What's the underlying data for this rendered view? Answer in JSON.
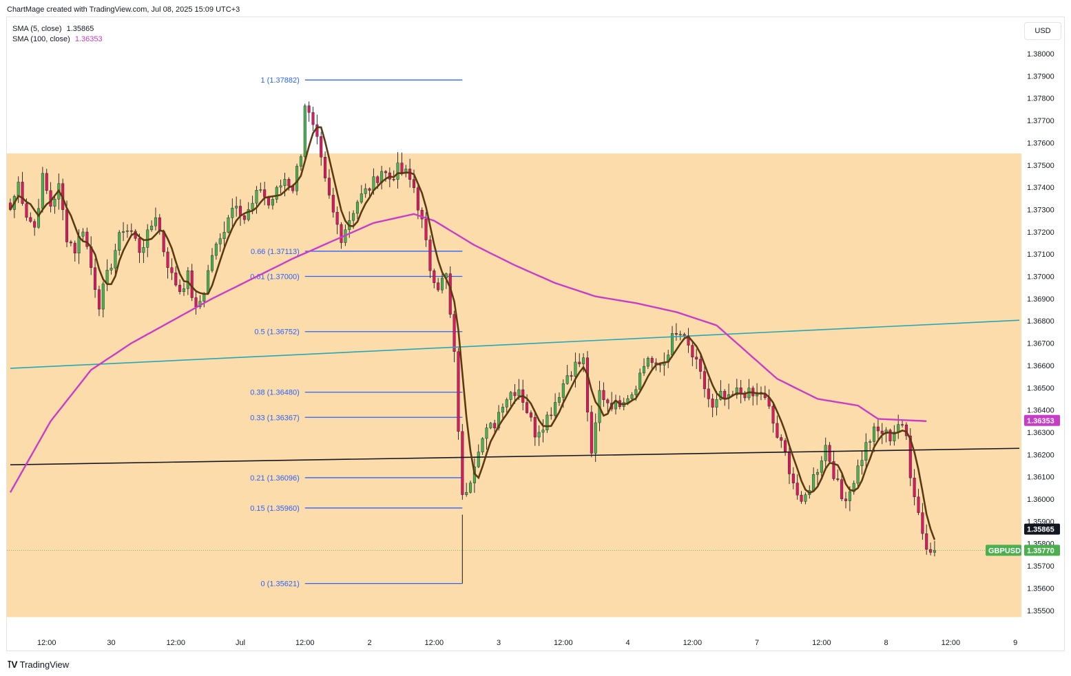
{
  "header": {
    "credit": "ChartMage created with TradingView.com, Jul 08, 2025 15:09 UTC+3"
  },
  "legend": [
    {
      "label": "SMA (5, close)",
      "value": "1.35865",
      "color": "#131722"
    },
    {
      "label": "SMA (100, close)",
      "value": "1.36353",
      "color": "#c83cc8"
    }
  ],
  "toolbar": {
    "currency": "USD"
  },
  "footer": {
    "brand": "TradingView"
  },
  "colors": {
    "zone": "#fcdcaa",
    "up": "#4caf50",
    "down": "#d81b60",
    "sma5": "#5b3a12",
    "sma100": "#c83cc8",
    "fib": "#2962ff",
    "trend_cyan": "#22a8b4",
    "trend_black": "#131722",
    "symbol_tag": "#4caf50"
  },
  "chart_data": {
    "type": "candlestick",
    "symbol": "GBPUSD",
    "last_price": "1.35770",
    "sma5_label": "1.35865",
    "sma100_label": "1.36353",
    "ylim": [
      1.3545,
      1.3812
    ],
    "y_ticks": [
      "1.38000",
      "1.37900",
      "1.37800",
      "1.37700",
      "1.37600",
      "1.37500",
      "1.37400",
      "1.37300",
      "1.37200",
      "1.37100",
      "1.37000",
      "1.36900",
      "1.36800",
      "1.36700",
      "1.36600",
      "1.36500",
      "1.36400",
      "1.36300",
      "1.36200",
      "1.36100",
      "1.36000",
      "1.35900",
      "1.35800",
      "1.35700",
      "1.35600",
      "1.35500"
    ],
    "x_ticks": [
      "12:00",
      "30",
      "12:00",
      "Jul",
      "12:00",
      "2",
      "12:00",
      "3",
      "12:00",
      "4",
      "12:00",
      "7",
      "12:00",
      "8",
      "12:00",
      "9"
    ],
    "x_range_bars": [
      0,
      243
    ],
    "x_tick_bars": [
      9,
      25,
      41,
      57,
      73,
      89,
      105,
      121,
      137,
      153,
      169,
      185,
      201,
      217,
      233,
      249
    ],
    "supply_zone": {
      "top": 1.37552,
      "bottom": 1.3547,
      "from_bar": 0
    },
    "fibonacci": {
      "from_bar": 73,
      "to_bar": 112,
      "levels": [
        {
          "label": "1 (1.37882)",
          "price": 1.37882
        },
        {
          "label": "0.66 (1.37113)",
          "price": 1.37113
        },
        {
          "label": "0.61 (1.37000)",
          "price": 1.37
        },
        {
          "label": "0.5 (1.36752)",
          "price": 1.36752
        },
        {
          "label": "0.38 (1.36480)",
          "price": 1.3648
        },
        {
          "label": "0.33 (1.36367)",
          "price": 1.36367
        },
        {
          "label": "0.21 (1.36096)",
          "price": 1.36096
        },
        {
          "label": "0.15 (1.35960)",
          "price": 1.3596
        },
        {
          "label": "0 (1.35621)",
          "price": 1.35621
        }
      ]
    },
    "trendlines": [
      {
        "name": "cyan",
        "from": [
          0,
          1.36587
        ],
        "to": [
          250,
          1.36803
        ]
      },
      {
        "name": "black",
        "from": [
          0,
          1.36154
        ],
        "to": [
          250,
          1.36228
        ]
      }
    ],
    "close_anchors": [
      [
        0,
        1.373
      ],
      [
        2,
        1.3742
      ],
      [
        4,
        1.3728
      ],
      [
        6,
        1.3722
      ],
      [
        8,
        1.3744
      ],
      [
        10,
        1.3732
      ],
      [
        12,
        1.374
      ],
      [
        14,
        1.3718
      ],
      [
        16,
        1.3712
      ],
      [
        18,
        1.3722
      ],
      [
        20,
        1.3704
      ],
      [
        22,
        1.3688
      ],
      [
        24,
        1.37
      ],
      [
        26,
        1.3712
      ],
      [
        28,
        1.3722
      ],
      [
        30,
        1.372
      ],
      [
        32,
        1.3712
      ],
      [
        34,
        1.3718
      ],
      [
        36,
        1.3728
      ],
      [
        38,
        1.3712
      ],
      [
        40,
        1.37
      ],
      [
        42,
        1.3694
      ],
      [
        44,
        1.37
      ],
      [
        46,
        1.3684
      ],
      [
        48,
        1.3694
      ],
      [
        50,
        1.371
      ],
      [
        52,
        1.3716
      ],
      [
        54,
        1.3728
      ],
      [
        56,
        1.3734
      ],
      [
        58,
        1.3726
      ],
      [
        60,
        1.3732
      ],
      [
        62,
        1.374
      ],
      [
        64,
        1.3732
      ],
      [
        66,
        1.3738
      ],
      [
        68,
        1.3744
      ],
      [
        70,
        1.374
      ],
      [
        72,
        1.3756
      ],
      [
        73,
        1.3778
      ],
      [
        74,
        1.3772
      ],
      [
        76,
        1.376
      ],
      [
        78,
        1.3742
      ],
      [
        80,
        1.3728
      ],
      [
        82,
        1.3718
      ],
      [
        84,
        1.3726
      ],
      [
        86,
        1.3734
      ],
      [
        88,
        1.3738
      ],
      [
        90,
        1.3742
      ],
      [
        92,
        1.3748
      ],
      [
        94,
        1.3744
      ],
      [
        96,
        1.3748
      ],
      [
        98,
        1.3746
      ],
      [
        100,
        1.374
      ],
      [
        102,
        1.3724
      ],
      [
        104,
        1.3704
      ],
      [
        106,
        1.3696
      ],
      [
        108,
        1.37
      ],
      [
        110,
        1.3664
      ],
      [
        112,
        1.36
      ],
      [
        114,
        1.361
      ],
      [
        116,
        1.3624
      ],
      [
        118,
        1.363
      ],
      [
        120,
        1.3634
      ],
      [
        122,
        1.3644
      ],
      [
        124,
        1.3648
      ],
      [
        126,
        1.365
      ],
      [
        128,
        1.364
      ],
      [
        130,
        1.363
      ],
      [
        132,
        1.3634
      ],
      [
        134,
        1.364
      ],
      [
        136,
        1.3648
      ],
      [
        138,
        1.3656
      ],
      [
        140,
        1.366
      ],
      [
        142,
        1.3662
      ],
      [
        144,
        1.3618
      ],
      [
        146,
        1.3648
      ],
      [
        148,
        1.3644
      ],
      [
        150,
        1.3642
      ],
      [
        152,
        1.3646
      ],
      [
        154,
        1.3648
      ],
      [
        156,
        1.3656
      ],
      [
        158,
        1.3664
      ],
      [
        160,
        1.3658
      ],
      [
        162,
        1.3662
      ],
      [
        164,
        1.3672
      ],
      [
        166,
        1.3674
      ],
      [
        168,
        1.3668
      ],
      [
        170,
        1.366
      ],
      [
        172,
        1.365
      ],
      [
        174,
        1.364
      ],
      [
        176,
        1.3646
      ],
      [
        178,
        1.3644
      ],
      [
        180,
        1.3648
      ],
      [
        182,
        1.3648
      ],
      [
        184,
        1.3646
      ],
      [
        186,
        1.3648
      ],
      [
        188,
        1.364
      ],
      [
        190,
        1.3628
      ],
      [
        192,
        1.362
      ],
      [
        194,
        1.3608
      ],
      [
        196,
        1.3596
      ],
      [
        198,
        1.3606
      ],
      [
        200,
        1.3614
      ],
      [
        202,
        1.3624
      ],
      [
        204,
        1.3612
      ],
      [
        206,
        1.36
      ],
      [
        208,
        1.3604
      ],
      [
        210,
        1.3614
      ],
      [
        212,
        1.3624
      ],
      [
        214,
        1.363
      ],
      [
        216,
        1.363
      ],
      [
        218,
        1.3628
      ],
      [
        220,
        1.3634
      ],
      [
        222,
        1.3628
      ],
      [
        223,
        1.3612
      ],
      [
        225,
        1.3594
      ],
      [
        227,
        1.3578
      ],
      [
        228,
        1.3576
      ],
      [
        229,
        1.3577
      ]
    ],
    "sma100_anchors": [
      [
        0,
        1.3603
      ],
      [
        10,
        1.3635
      ],
      [
        20,
        1.3658
      ],
      [
        30,
        1.367
      ],
      [
        40,
        1.368
      ],
      [
        50,
        1.369
      ],
      [
        60,
        1.3699
      ],
      [
        70,
        1.3708
      ],
      [
        80,
        1.3716
      ],
      [
        90,
        1.3724
      ],
      [
        100,
        1.3728
      ],
      [
        105,
        1.3725
      ],
      [
        115,
        1.3714
      ],
      [
        125,
        1.3705
      ],
      [
        135,
        1.3697
      ],
      [
        145,
        1.3691
      ],
      [
        155,
        1.3688
      ],
      [
        165,
        1.3684
      ],
      [
        175,
        1.3678
      ],
      [
        180,
        1.367
      ],
      [
        190,
        1.3654
      ],
      [
        200,
        1.3645
      ],
      [
        210,
        1.3642
      ],
      [
        215,
        1.3636
      ],
      [
        227,
        1.3635
      ]
    ]
  }
}
